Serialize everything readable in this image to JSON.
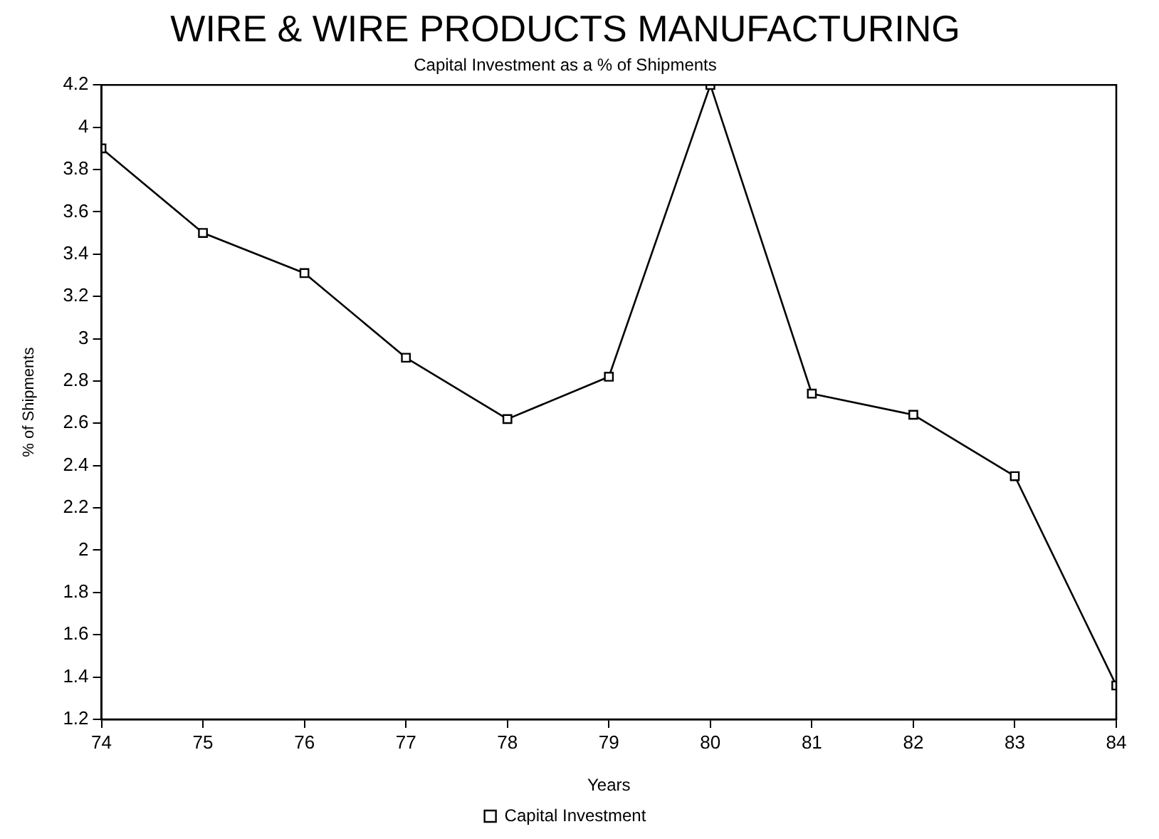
{
  "chart_data": {
    "type": "line",
    "title": "WIRE & WIRE PRODUCTS MANUFACTURING",
    "subtitle": "Capital Investment as a % of Shipments",
    "xlabel": "Years",
    "ylabel": "% of Shipments",
    "x": [
      74,
      75,
      76,
      77,
      78,
      79,
      80,
      81,
      82,
      83,
      84
    ],
    "series": [
      {
        "name": "Capital Investment",
        "color": "#000000",
        "values": [
          3.9,
          3.5,
          3.31,
          2.91,
          2.62,
          2.82,
          4.2,
          2.74,
          2.64,
          2.35,
          1.36
        ]
      }
    ],
    "xlim": [
      74,
      84
    ],
    "xticks": [
      74,
      75,
      76,
      77,
      78,
      79,
      80,
      81,
      82,
      83,
      84
    ],
    "ylim": [
      1.2,
      4.2
    ],
    "yticks": [
      1.2,
      1.4,
      1.6,
      1.8,
      2,
      2.2,
      2.4,
      2.6,
      2.8,
      3,
      3.2,
      3.4,
      3.6,
      3.8,
      4,
      4.2
    ],
    "grid": false,
    "legend": "bottom",
    "marker": "square",
    "line_style": "solid"
  }
}
